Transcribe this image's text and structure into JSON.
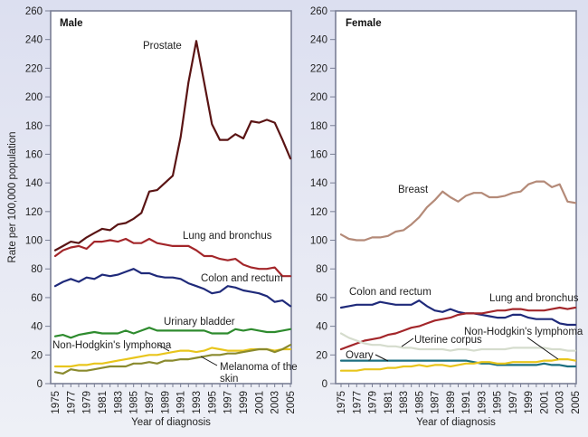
{
  "chart_data": [
    {
      "type": "line",
      "panel": "male",
      "title": "Male",
      "xlabel": "Year of diagnosis",
      "ylabel": "Rate per 100,000 population",
      "xlim": [
        1975,
        2005
      ],
      "ylim": [
        0,
        260
      ],
      "yticks": [
        0,
        20,
        40,
        60,
        80,
        100,
        120,
        140,
        160,
        180,
        200,
        220,
        240,
        260
      ],
      "xticks": [
        1975,
        1977,
        1979,
        1981,
        1983,
        1985,
        1987,
        1989,
        1991,
        1993,
        1995,
        1997,
        1999,
        2001,
        2003,
        2005
      ],
      "grid": false,
      "x": [
        1975,
        1976,
        1977,
        1978,
        1979,
        1980,
        1981,
        1982,
        1983,
        1984,
        1985,
        1986,
        1987,
        1988,
        1989,
        1990,
        1991,
        1992,
        1993,
        1994,
        1995,
        1996,
        1997,
        1998,
        1999,
        2000,
        2001,
        2002,
        2003,
        2004,
        2005
      ],
      "series": [
        {
          "name": "Prostate",
          "color": "#5a1414",
          "values": [
            93,
            96,
            99,
            98,
            102,
            105,
            108,
            107,
            111,
            112,
            115,
            119,
            134,
            135,
            140,
            145,
            172,
            210,
            239,
            210,
            181,
            170,
            170,
            174,
            171,
            183,
            182,
            184,
            182,
            170,
            157
          ]
        },
        {
          "name": "Lung and bronchus",
          "color": "#a3262a",
          "values": [
            89,
            93,
            95,
            96,
            94,
            99,
            99,
            100,
            99,
            101,
            98,
            98,
            101,
            98,
            97,
            96,
            96,
            96,
            93,
            89,
            89,
            87,
            86,
            87,
            83,
            81,
            80,
            80,
            81,
            75,
            75
          ]
        },
        {
          "name": "Colon and rectum",
          "color": "#1f2a7a",
          "values": [
            68,
            71,
            73,
            71,
            74,
            73,
            76,
            75,
            76,
            78,
            80,
            77,
            77,
            75,
            74,
            74,
            73,
            70,
            68,
            66,
            63,
            64,
            68,
            67,
            65,
            64,
            63,
            61,
            57,
            58,
            54
          ]
        },
        {
          "name": "Urinary bladder",
          "color": "#2e8b2e",
          "values": [
            33,
            34,
            32,
            34,
            35,
            36,
            35,
            35,
            35,
            37,
            35,
            37,
            39,
            37,
            37,
            37,
            37,
            37,
            37,
            37,
            35,
            35,
            35,
            38,
            37,
            38,
            37,
            36,
            36,
            37,
            38
          ]
        },
        {
          "name": "Non-Hodgkin's lymphoma",
          "color": "#e8c51c",
          "values": [
            12,
            12,
            12,
            13,
            13,
            14,
            14,
            15,
            16,
            17,
            18,
            19,
            20,
            20,
            21,
            22,
            23,
            23,
            22,
            23,
            25,
            24,
            23,
            23,
            23,
            24,
            24,
            24,
            23,
            24,
            24
          ]
        },
        {
          "name": "Melanoma of the skin",
          "color": "#8a8a2e",
          "values": [
            8,
            7,
            10,
            9,
            9,
            10,
            11,
            12,
            12,
            12,
            14,
            14,
            15,
            14,
            16,
            16,
            17,
            17,
            18,
            19,
            20,
            20,
            21,
            21,
            22,
            23,
            24,
            24,
            22,
            24,
            27
          ]
        }
      ],
      "annotations": [
        "Prostate",
        "Lung and bronchus",
        "Colon and rectum",
        "Urinary bladder",
        "Non-Hodgkin's lymphoma",
        "Melanoma of the skin"
      ]
    },
    {
      "type": "line",
      "panel": "female",
      "title": "Female",
      "xlabel": "Year of diagnosis",
      "ylabel": "",
      "xlim": [
        1975,
        2005
      ],
      "ylim": [
        0,
        260
      ],
      "yticks": [
        0,
        20,
        40,
        60,
        80,
        100,
        120,
        140,
        160,
        180,
        200,
        220,
        240,
        260
      ],
      "xticks": [
        1975,
        1977,
        1979,
        1981,
        1983,
        1985,
        1987,
        1989,
        1991,
        1993,
        1995,
        1997,
        1999,
        2001,
        2003,
        2005
      ],
      "grid": false,
      "x": [
        1975,
        1976,
        1977,
        1978,
        1979,
        1980,
        1981,
        1982,
        1983,
        1984,
        1985,
        1986,
        1987,
        1988,
        1989,
        1990,
        1991,
        1992,
        1993,
        1994,
        1995,
        1996,
        1997,
        1998,
        1999,
        2000,
        2001,
        2002,
        2003,
        2004,
        2005
      ],
      "series": [
        {
          "name": "Breast",
          "color": "#b48a78",
          "values": [
            104,
            101,
            100,
            100,
            102,
            102,
            103,
            106,
            107,
            111,
            116,
            123,
            128,
            134,
            130,
            127,
            131,
            133,
            133,
            130,
            130,
            131,
            133,
            134,
            139,
            141,
            141,
            137,
            139,
            127,
            126
          ]
        },
        {
          "name": "Colon and rectum",
          "color": "#1f2a7a",
          "values": [
            53,
            54,
            55,
            55,
            55,
            57,
            56,
            55,
            55,
            55,
            58,
            54,
            51,
            50,
            52,
            50,
            49,
            49,
            48,
            47,
            46,
            46,
            48,
            48,
            46,
            45,
            45,
            45,
            42,
            41,
            41
          ]
        },
        {
          "name": "Lung and bronchus",
          "color": "#a3262a",
          "values": [
            24,
            26,
            28,
            30,
            31,
            32,
            34,
            35,
            37,
            39,
            40,
            42,
            44,
            45,
            46,
            48,
            49,
            49,
            49,
            50,
            51,
            51,
            52,
            52,
            51,
            51,
            51,
            52,
            53,
            52,
            53
          ]
        },
        {
          "name": "Uterine corpus",
          "color": "#d5dccd",
          "values": [
            35,
            32,
            30,
            28,
            27,
            27,
            26,
            26,
            25,
            25,
            24,
            24,
            24,
            24,
            23,
            24,
            24,
            23,
            24,
            24,
            24,
            24,
            25,
            25,
            25,
            25,
            25,
            24,
            24,
            23,
            23
          ]
        },
        {
          "name": "Ovary",
          "color": "#1b6f80",
          "values": [
            16,
            16,
            16,
            16,
            16,
            16,
            16,
            16,
            16,
            16,
            16,
            16,
            16,
            16,
            16,
            16,
            16,
            15,
            14,
            14,
            13,
            13,
            13,
            13,
            13,
            13,
            14,
            13,
            13,
            12,
            12
          ]
        },
        {
          "name": "Non-Hodgkin's lymphoma",
          "color": "#e8c51c",
          "values": [
            9,
            9,
            9,
            10,
            10,
            10,
            11,
            11,
            12,
            12,
            13,
            12,
            13,
            13,
            12,
            13,
            14,
            14,
            15,
            15,
            14,
            14,
            15,
            15,
            15,
            15,
            16,
            16,
            17,
            17,
            16
          ]
        }
      ],
      "annotations": [
        "Breast",
        "Colon and rectum",
        "Lung and bronchus",
        "Uterine corpus",
        "Ovary",
        "Non-Hodgkin's lymphoma"
      ]
    }
  ]
}
